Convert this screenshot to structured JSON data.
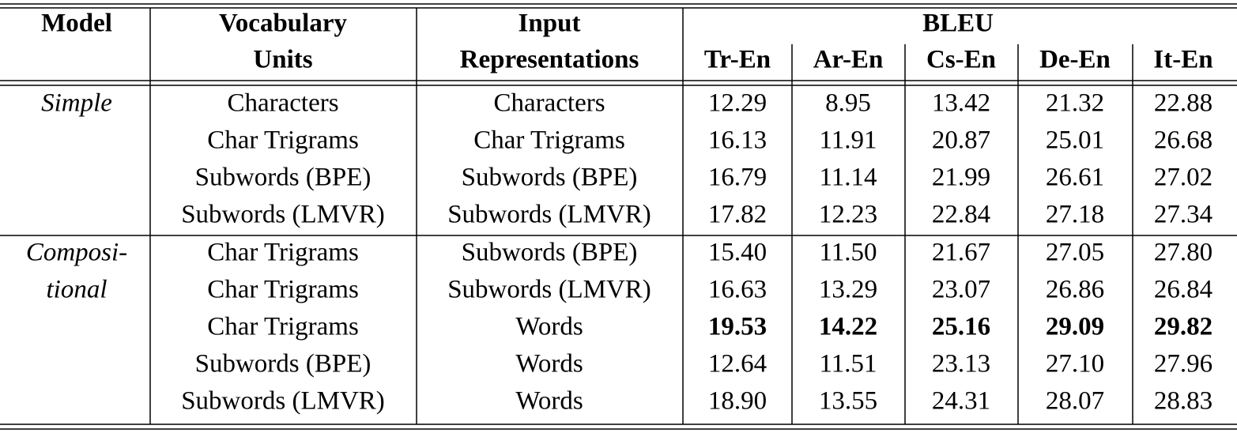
{
  "header": {
    "model": "Model",
    "vocabulary_units": [
      "Vocabulary",
      "Units"
    ],
    "input_representations": [
      "Input",
      "Representations"
    ],
    "bleu": "BLEU",
    "language_pairs": [
      "Tr-En",
      "Ar-En",
      "Cs-En",
      "De-En",
      "It-En"
    ]
  },
  "groups": [
    {
      "model": [
        "Simple"
      ],
      "rows": [
        {
          "vocabulary": "Characters",
          "input": "Characters",
          "scores": [
            "12.29",
            "8.95",
            "13.42",
            "21.32",
            "22.88"
          ]
        },
        {
          "vocabulary": "Char Trigrams",
          "input": "Char Trigrams",
          "scores": [
            "16.13",
            "11.91",
            "20.87",
            "25.01",
            "26.68"
          ]
        },
        {
          "vocabulary": "Subwords (BPE)",
          "input": "Subwords (BPE)",
          "scores": [
            "16.79",
            "11.14",
            "21.99",
            "26.61",
            "27.02"
          ]
        },
        {
          "vocabulary": "Subwords (LMVR)",
          "input": "Subwords (LMVR)",
          "scores": [
            "17.82",
            "12.23",
            "22.84",
            "27.18",
            "27.34"
          ]
        }
      ]
    },
    {
      "model": [
        "Composi-",
        "tional"
      ],
      "rows": [
        {
          "vocabulary": "Char Trigrams",
          "input": "Subwords (BPE)",
          "scores": [
            "15.40",
            "11.50",
            "21.67",
            "27.05",
            "27.80"
          ]
        },
        {
          "vocabulary": "Char Trigrams",
          "input": "Subwords (LMVR)",
          "scores": [
            "16.63",
            "13.29",
            "23.07",
            "26.86",
            "26.84"
          ]
        },
        {
          "vocabulary": "Char Trigrams",
          "input": "Words",
          "scores": [
            "19.53",
            "14.22",
            "25.16",
            "29.09",
            "29.82"
          ],
          "bold": true
        },
        {
          "vocabulary": "Subwords (BPE)",
          "input": "Words",
          "scores": [
            "12.64",
            "11.51",
            "23.13",
            "27.10",
            "27.96"
          ]
        },
        {
          "vocabulary": "Subwords (LMVR)",
          "input": "Words",
          "scores": [
            "18.90",
            "13.55",
            "24.31",
            "28.07",
            "28.83"
          ]
        }
      ]
    }
  ]
}
